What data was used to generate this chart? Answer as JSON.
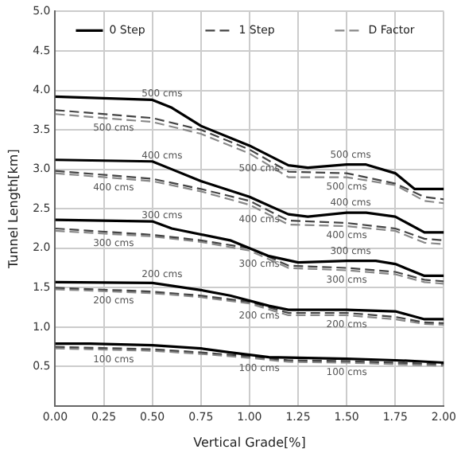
{
  "chart_data": {
    "type": "line",
    "xlabel": "Vertical Grade[%]",
    "ylabel": "Tunnel Length[km]",
    "xlim": [
      0,
      2
    ],
    "ylim": [
      0,
      5
    ],
    "xticks": [
      {
        "value": 0,
        "label": "0.00"
      },
      {
        "value": 0.25,
        "label": "0.25"
      },
      {
        "value": 0.5,
        "label": "0.50"
      },
      {
        "value": 0.75,
        "label": "0.75"
      },
      {
        "value": 1,
        "label": "1.00"
      },
      {
        "value": 1.25,
        "label": "1.25"
      },
      {
        "value": 1.5,
        "label": "1.50"
      },
      {
        "value": 1.75,
        "label": "1.75"
      },
      {
        "value": 2,
        "label": "2.00"
      }
    ],
    "yticks": [
      {
        "value": 0.5,
        "label": "0.5"
      },
      {
        "value": 1,
        "label": "1.0"
      },
      {
        "value": 1.5,
        "label": "1.5"
      },
      {
        "value": 2,
        "label": "2.0"
      },
      {
        "value": 2.5,
        "label": "2.5"
      },
      {
        "value": 3,
        "label": "3.0"
      },
      {
        "value": 3.5,
        "label": "3.5"
      },
      {
        "value": 4,
        "label": "4.0"
      },
      {
        "value": 4.5,
        "label": "4.5"
      },
      {
        "value": 5,
        "label": "5.0"
      }
    ],
    "grid": true,
    "legend": "top",
    "marker": "none",
    "series": [
      {
        "name": "0 Step",
        "color": "#000000",
        "line_style": "solid",
        "x": [
          0,
          0.5,
          0.6,
          0.75,
          1,
          1.2,
          1.3,
          1.5,
          1.6,
          1.75,
          1.85,
          2
        ],
        "values": [
          3.92,
          3.88,
          3.78,
          3.55,
          3.3,
          3.05,
          3.02,
          3.06,
          3.06,
          2.95,
          2.75,
          2.75
        ]
      },
      {
        "name": "1 Step",
        "color": "#444444",
        "line_style": "dashed",
        "x": [
          0,
          0.5,
          0.75,
          1,
          1.2,
          1.5,
          1.75,
          1.9,
          2
        ],
        "values": [
          3.75,
          3.65,
          3.5,
          3.25,
          2.97,
          2.95,
          2.82,
          2.65,
          2.62
        ]
      },
      {
        "name": "D Factor",
        "color": "#888888",
        "line_style": "dashed",
        "x": [
          0,
          0.5,
          0.75,
          1,
          1.2,
          1.5,
          1.75,
          1.9,
          2
        ],
        "values": [
          3.7,
          3.6,
          3.45,
          3.2,
          2.9,
          2.9,
          2.8,
          2.6,
          2.57
        ]
      },
      {
        "color": "#000000",
        "line_style": "solid",
        "x": [
          0,
          0.5,
          0.6,
          0.75,
          1,
          1.2,
          1.3,
          1.5,
          1.6,
          1.75,
          1.9,
          2
        ],
        "values": [
          3.12,
          3.1,
          3,
          2.85,
          2.65,
          2.43,
          2.4,
          2.45,
          2.45,
          2.4,
          2.2,
          2.2
        ]
      },
      {
        "color": "#444444",
        "line_style": "dashed",
        "x": [
          0,
          0.5,
          0.75,
          1,
          1.2,
          1.5,
          1.75,
          1.9,
          2
        ],
        "values": [
          2.98,
          2.88,
          2.75,
          2.6,
          2.35,
          2.32,
          2.25,
          2.12,
          2.1
        ]
      },
      {
        "color": "#888888",
        "line_style": "dashed",
        "x": [
          0,
          0.5,
          0.75,
          1,
          1.2,
          1.5,
          1.75,
          1.9,
          2
        ],
        "values": [
          2.95,
          2.85,
          2.72,
          2.55,
          2.3,
          2.28,
          2.22,
          2.07,
          2.05
        ]
      },
      {
        "color": "#000000",
        "line_style": "solid",
        "x": [
          0,
          0.5,
          0.6,
          0.9,
          1.1,
          1.25,
          1.5,
          1.65,
          1.75,
          1.9,
          2
        ],
        "values": [
          2.36,
          2.34,
          2.25,
          2.1,
          1.9,
          1.82,
          1.84,
          1.84,
          1.8,
          1.65,
          1.65
        ]
      },
      {
        "color": "#444444",
        "line_style": "dashed",
        "x": [
          0,
          0.5,
          0.75,
          1,
          1.2,
          1.5,
          1.75,
          1.9,
          2
        ],
        "values": [
          2.25,
          2.17,
          2.1,
          2,
          1.78,
          1.75,
          1.7,
          1.6,
          1.58
        ]
      },
      {
        "color": "#888888",
        "line_style": "dashed",
        "x": [
          0,
          0.5,
          0.75,
          1,
          1.2,
          1.5,
          1.75,
          1.9,
          2
        ],
        "values": [
          2.22,
          2.15,
          2.08,
          1.97,
          1.75,
          1.72,
          1.67,
          1.57,
          1.55
        ]
      },
      {
        "color": "#000000",
        "line_style": "solid",
        "x": [
          0,
          0.5,
          0.75,
          0.9,
          1.1,
          1.2,
          1.5,
          1.75,
          1.9,
          2
        ],
        "values": [
          1.57,
          1.56,
          1.47,
          1.4,
          1.27,
          1.22,
          1.22,
          1.2,
          1.1,
          1.1
        ]
      },
      {
        "color": "#444444",
        "line_style": "dashed",
        "x": [
          0,
          0.5,
          0.75,
          1,
          1.2,
          1.5,
          1.75,
          1.9,
          2
        ],
        "values": [
          1.5,
          1.45,
          1.4,
          1.32,
          1.18,
          1.18,
          1.13,
          1.06,
          1.05
        ]
      },
      {
        "color": "#888888",
        "line_style": "dashed",
        "x": [
          0,
          0.5,
          0.75,
          1,
          1.2,
          1.5,
          1.75,
          1.9,
          2
        ],
        "values": [
          1.48,
          1.43,
          1.38,
          1.3,
          1.15,
          1.15,
          1.1,
          1.04,
          1.03
        ]
      },
      {
        "color": "#000000",
        "line_style": "solid",
        "x": [
          0,
          0.18,
          0.5,
          0.75,
          0.9,
          1.1,
          1.5,
          1.75,
          1.85,
          2
        ],
        "values": [
          0.79,
          0.79,
          0.77,
          0.73,
          0.68,
          0.62,
          0.6,
          0.58,
          0.57,
          0.55
        ]
      },
      {
        "color": "#444444",
        "line_style": "dashed",
        "x": [
          0,
          0.5,
          0.75,
          1,
          1.2,
          1.5,
          1.75,
          2
        ],
        "values": [
          0.75,
          0.72,
          0.68,
          0.63,
          0.58,
          0.57,
          0.55,
          0.53
        ]
      },
      {
        "color": "#888888",
        "line_style": "dashed",
        "x": [
          0,
          0.5,
          0.75,
          1,
          1.2,
          1.5,
          1.75,
          2
        ],
        "values": [
          0.73,
          0.7,
          0.66,
          0.61,
          0.56,
          0.55,
          0.53,
          0.51
        ]
      }
    ],
    "annotations": [
      {
        "text": "500 cms",
        "x": 0.55,
        "y": 3.88
      },
      {
        "text": "500 cms",
        "x": 0.3,
        "y": 3.68
      },
      {
        "text": "500 cms",
        "x": 1.52,
        "y": 3.06
      },
      {
        "text": "500 cms",
        "x": 1.5,
        "y": 2.9
      },
      {
        "text": "500 cms",
        "x": 1.05,
        "y": 3.15
      },
      {
        "text": "400 cms",
        "x": 0.55,
        "y": 3.1
      },
      {
        "text": "400 cms",
        "x": 0.3,
        "y": 2.93
      },
      {
        "text": "400 cms",
        "x": 1.52,
        "y": 2.45
      },
      {
        "text": "400 cms",
        "x": 1.5,
        "y": 2.28
      },
      {
        "text": "400 cms",
        "x": 1.05,
        "y": 2.5
      },
      {
        "text": "300 cms",
        "x": 0.55,
        "y": 2.34
      },
      {
        "text": "300 cms",
        "x": 0.3,
        "y": 2.2
      },
      {
        "text": "300 cms",
        "x": 1.52,
        "y": 1.84
      },
      {
        "text": "300 cms",
        "x": 1.5,
        "y": 1.72
      },
      {
        "text": "300 cms",
        "x": 1.05,
        "y": 1.93
      },
      {
        "text": "200 cms",
        "x": 0.55,
        "y": 1.55
      },
      {
        "text": "200 cms",
        "x": 0.3,
        "y": 1.47
      },
      {
        "text": "200 cms",
        "x": 1.5,
        "y": 1.15
      },
      {
        "text": "200 cms",
        "x": 1.05,
        "y": 1.27
      },
      {
        "text": "100 cms",
        "x": 0.3,
        "y": 0.72
      },
      {
        "text": "100 cms",
        "x": 1.05,
        "y": 0.6
      },
      {
        "text": "100 cms",
        "x": 1.5,
        "y": 0.55
      }
    ]
  }
}
